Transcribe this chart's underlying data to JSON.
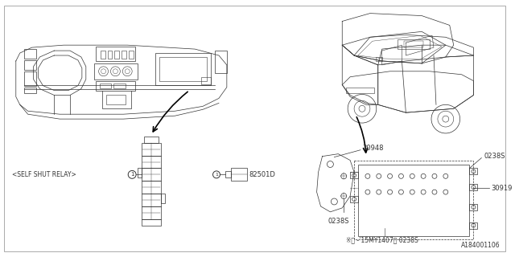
{
  "bg_color": "#ffffff",
  "border_color": "#aaaaaa",
  "line_color": "#333333",
  "label_color": "#333333",
  "diagram_id": "A184001106",
  "parts": {
    "relay_label": "<SELF SHUT RELAY>",
    "relay_part": "82501D",
    "part1": "30948",
    "part2": "0238S",
    "part3": "30919",
    "part4": "0238S",
    "note": "※（ -’15MY1407）",
    "note_part": "0238S"
  },
  "border": [
    5,
    5,
    635,
    315
  ]
}
